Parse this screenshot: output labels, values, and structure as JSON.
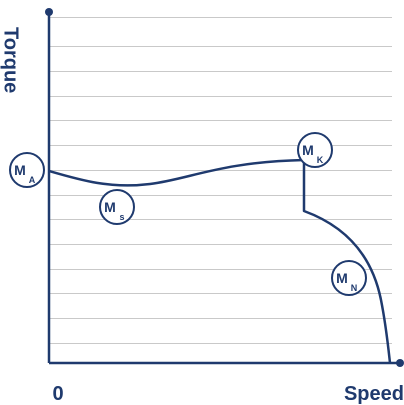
{
  "colors": {
    "navy": "#1f3a6e",
    "grid": "#c9c9c9",
    "background": "#ffffff"
  },
  "axes": {
    "y_label": "Torque",
    "x_label": "Speed",
    "origin_label": "0"
  },
  "markers": {
    "ma": {
      "main": "M",
      "sub": "A"
    },
    "ms": {
      "main": "M",
      "sub": "s"
    },
    "mk": {
      "main": "M",
      "sub": "K"
    },
    "mn": {
      "main": "M",
      "sub": "N"
    }
  }
}
